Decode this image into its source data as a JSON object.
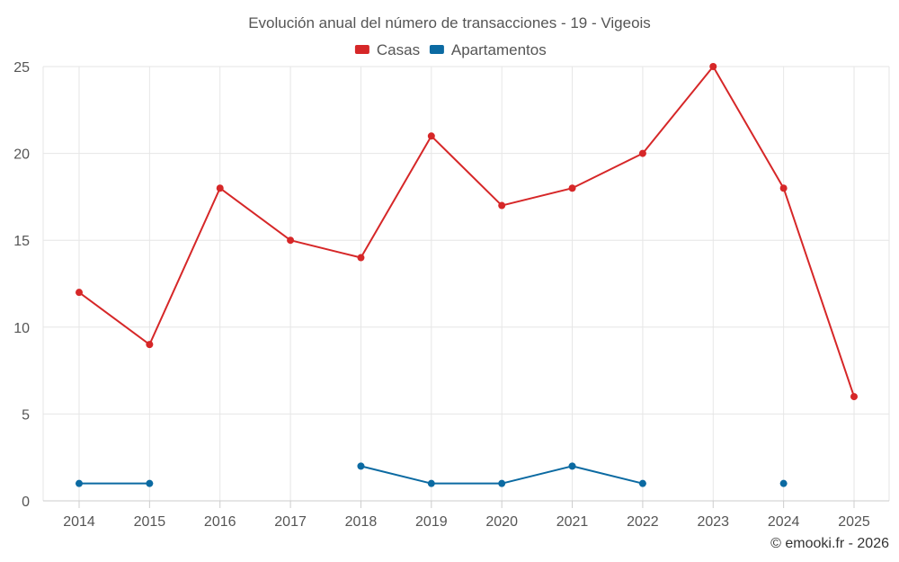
{
  "chart_data": {
    "type": "line",
    "title": "Evolución anual del número de transacciones - 19 - Vigeois",
    "categories": [
      "2014",
      "2015",
      "2016",
      "2017",
      "2018",
      "2019",
      "2020",
      "2021",
      "2022",
      "2023",
      "2024",
      "2025"
    ],
    "series": [
      {
        "name": "Casas",
        "color": "#d62728",
        "values": [
          12,
          9,
          18,
          15,
          14,
          21,
          17,
          18,
          20,
          25,
          18,
          6
        ]
      },
      {
        "name": "Apartamentos",
        "color": "#0b6aa2",
        "values": [
          1,
          1,
          null,
          null,
          2,
          1,
          1,
          2,
          1,
          null,
          1,
          null
        ]
      }
    ],
    "ylim": [
      0,
      25
    ],
    "yticks": [
      0,
      5,
      10,
      15,
      20,
      25
    ],
    "grid": true,
    "legend_position": "top-center",
    "xlabel": "",
    "ylabel": ""
  },
  "credit": "© emooki.fr - 2026"
}
